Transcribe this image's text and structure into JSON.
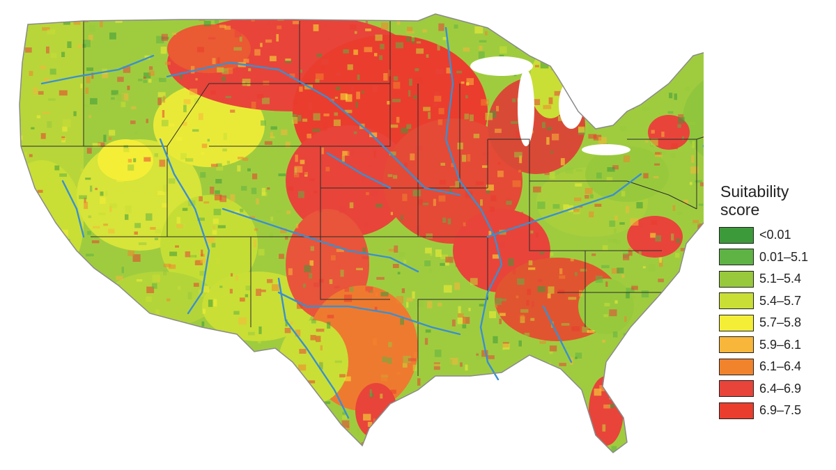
{
  "map": {
    "region": "contiguous-us",
    "layers": [
      "county-choropleth",
      "state-borders",
      "major-rivers"
    ],
    "colors": {
      "land_base": "#9fcc3f",
      "state_border": "#2b2b2b",
      "river": "#3a8fd0",
      "coast_gray": "#8a8a8a"
    }
  },
  "legend": {
    "title_line1": "Suitability",
    "title_line2": "score",
    "items": [
      {
        "label": "<0.01",
        "color": "#3d9a3a"
      },
      {
        "label": "0.01–5.1",
        "color": "#5fb344"
      },
      {
        "label": "5.1–5.4",
        "color": "#98c93c"
      },
      {
        "label": "5.4–5.7",
        "color": "#c9df35"
      },
      {
        "label": "5.7–5.8",
        "color": "#f4ee37"
      },
      {
        "label": "5.9–6.1",
        "color": "#f8b63a"
      },
      {
        "label": "6.1–6.4",
        "color": "#f2832d"
      },
      {
        "label": "6.4–6.9",
        "color": "#e8443a"
      },
      {
        "label": "6.9–7.5",
        "color": "#ea3d2e"
      }
    ]
  }
}
